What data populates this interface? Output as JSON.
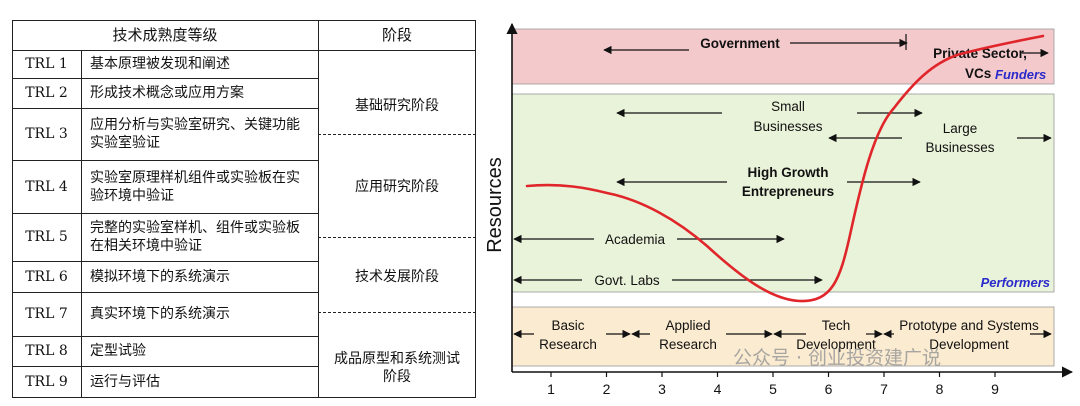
{
  "table": {
    "header": {
      "level": "技术成熟度等级",
      "stage": "阶段"
    },
    "rows": [
      {
        "code": "TRL 1",
        "desc": "基本原理被发现和阐述"
      },
      {
        "code": "TRL 2",
        "desc": "形成技术概念或应用方案"
      },
      {
        "code": "TRL 3",
        "desc": "应用分析与实验室研究、关键功能实验室验证"
      },
      {
        "code": "TRL 4",
        "desc": "实验室原理样机组件或实验板在实验环境中验证"
      },
      {
        "code": "TRL 5",
        "desc": "完整的实验室样机、组件或实验板在相关环境中验证"
      },
      {
        "code": "TRL 6",
        "desc": "模拟环境下的系统演示"
      },
      {
        "code": "TRL 7",
        "desc": "真实环境下的系统演示"
      },
      {
        "code": "TRL 8",
        "desc": "定型试验"
      },
      {
        "code": "TRL 9",
        "desc": "运行与评估"
      }
    ],
    "stages": [
      "基础研究阶段",
      "应用研究阶段",
      "技术发展阶段",
      "成品原型和系统测试阶段"
    ]
  },
  "diagram": {
    "y_axis_label": "Resources",
    "x_ticks": [
      "1",
      "2",
      "3",
      "4",
      "5",
      "6",
      "7",
      "8",
      "9"
    ],
    "bands": {
      "funders": {
        "label": "Funders",
        "color": "#f3c9cc"
      },
      "performers": {
        "label": "Performers",
        "color": "#e9f3d9"
      },
      "phases": {
        "color": "#fbebd0"
      }
    },
    "arrows": {
      "government": "Government",
      "private_line1": "Private Sector,",
      "private_line2": "VCs",
      "small_line1": "Small",
      "small_line2": "Businesses",
      "large_line1": "Large",
      "large_line2": "Businesses",
      "hg_line1": "High Growth",
      "hg_line2": "Entrepreneurs",
      "academia": "Academia",
      "govt_labs": "Govt. Labs"
    },
    "phases": {
      "basic_line1": "Basic",
      "basic_line2": "Research",
      "applied_line1": "Applied",
      "applied_line2": "Research",
      "tech_line1": "Tech",
      "tech_line2": "Development",
      "proto_line1": "Prototype and Systems",
      "proto_line2": "Development"
    },
    "curve_color": "#e0262b",
    "watermark": "公众号 · 创业投资建广说"
  }
}
